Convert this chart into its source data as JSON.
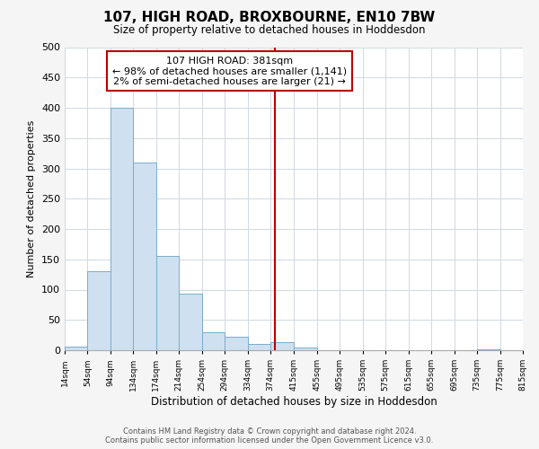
{
  "title": "107, HIGH ROAD, BROXBOURNE, EN10 7BW",
  "subtitle": "Size of property relative to detached houses in Hoddesdon",
  "xlabel": "Distribution of detached houses by size in Hoddesdon",
  "ylabel": "Number of detached properties",
  "bar_color": "#cfe0f0",
  "bar_edge_color": "#7aadcc",
  "vline_x": 381,
  "vline_color": "#bb0000",
  "annotation_title": "107 HIGH ROAD: 381sqm",
  "annotation_line1": "← 98% of detached houses are smaller (1,141)",
  "annotation_line2": "2% of semi-detached houses are larger (21) →",
  "bin_edges": [
    14,
    54,
    94,
    134,
    174,
    214,
    254,
    294,
    334,
    374,
    415,
    455,
    495,
    535,
    575,
    615,
    655,
    695,
    735,
    775,
    815
  ],
  "bin_counts": [
    6,
    130,
    400,
    310,
    155,
    93,
    30,
    22,
    10,
    14,
    5,
    0,
    0,
    0,
    0,
    0,
    0,
    0,
    1,
    0
  ],
  "tick_labels": [
    "14sqm",
    "54sqm",
    "94sqm",
    "134sqm",
    "174sqm",
    "214sqm",
    "254sqm",
    "294sqm",
    "334sqm",
    "374sqm",
    "415sqm",
    "455sqm",
    "495sqm",
    "535sqm",
    "575sqm",
    "615sqm",
    "655sqm",
    "695sqm",
    "735sqm",
    "775sqm",
    "815sqm"
  ],
  "ylim": [
    0,
    500
  ],
  "yticks": [
    0,
    50,
    100,
    150,
    200,
    250,
    300,
    350,
    400,
    450,
    500
  ],
  "footer_line1": "Contains HM Land Registry data © Crown copyright and database right 2024.",
  "footer_line2": "Contains public sector information licensed under the Open Government Licence v3.0.",
  "bg_color": "#f5f5f5",
  "plot_bg_color": "#ffffff",
  "grid_color": "#d0d8e0"
}
